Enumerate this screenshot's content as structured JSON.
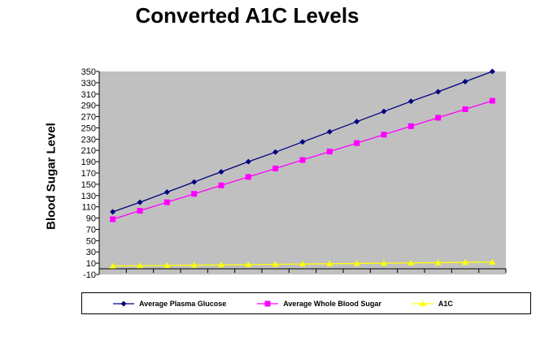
{
  "chart_data": {
    "type": "line",
    "title": "Converted A1C Levels",
    "xlabel": "",
    "ylabel": "Blood Sugar Level",
    "ylim": [
      -10,
      350
    ],
    "yticks": [
      -10,
      10,
      30,
      50,
      70,
      90,
      110,
      130,
      150,
      170,
      190,
      210,
      230,
      250,
      270,
      290,
      310,
      330,
      350
    ],
    "categories_count": 15,
    "grid": false,
    "legend": "bottom",
    "series": [
      {
        "name": "Average Plasma Glucose",
        "color": "#000080",
        "marker": "diamond",
        "values": [
          101,
          118,
          136,
          154,
          172,
          190,
          207,
          225,
          243,
          261,
          279,
          297,
          314,
          332,
          350
        ]
      },
      {
        "name": "Average Whole Blood Sugar",
        "color": "#FF00FF",
        "marker": "square",
        "values": [
          88,
          103,
          118,
          133,
          148,
          163,
          178,
          193,
          208,
          223,
          238,
          253,
          268,
          283,
          298
        ]
      },
      {
        "name": "A1C",
        "color": "#FFFF00",
        "marker": "triangle",
        "values": [
          5,
          5.5,
          6,
          6.5,
          7,
          7.5,
          8,
          8.5,
          9,
          9.5,
          10,
          10.5,
          11,
          11.5,
          12
        ]
      }
    ]
  }
}
